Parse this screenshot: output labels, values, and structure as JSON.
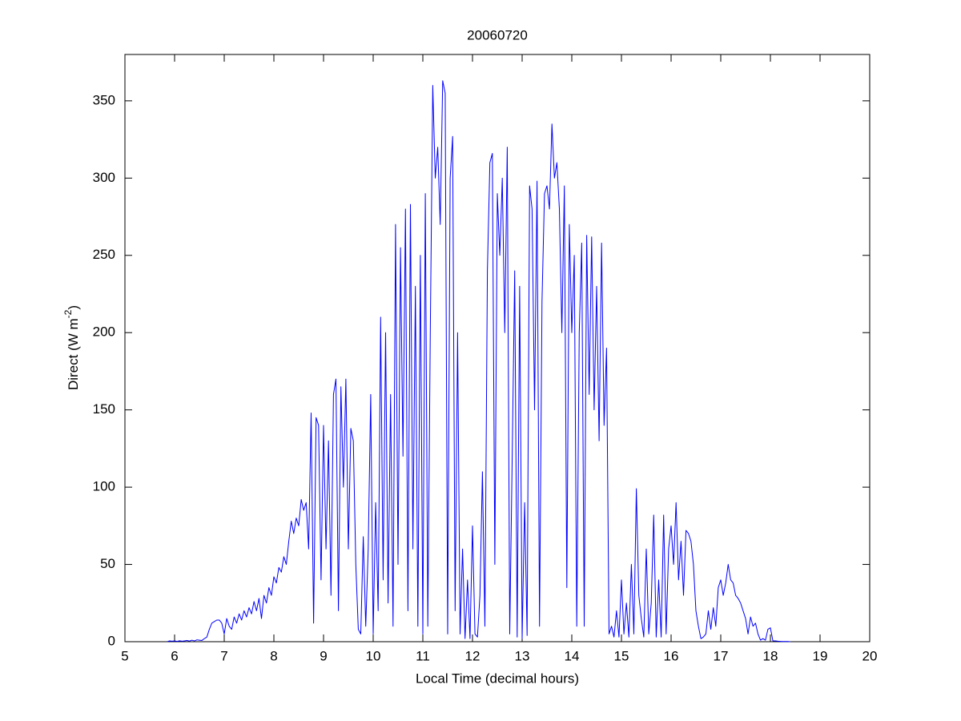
{
  "chart_data": {
    "type": "line",
    "title": "20060720",
    "xlabel": "Local Time (decimal hours)",
    "ylabel_parts": [
      "Direct (W m",
      "-2",
      ")"
    ],
    "color": "#0000ff",
    "x": [
      5.85,
      5.9,
      5.95,
      6.0,
      6.05,
      6.1,
      6.15,
      6.2,
      6.25,
      6.3,
      6.35,
      6.4,
      6.45,
      6.5,
      6.55,
      6.6,
      6.65,
      6.7,
      6.75,
      6.8,
      6.85,
      6.9,
      6.95,
      7.0,
      7.05,
      7.1,
      7.15,
      7.2,
      7.25,
      7.3,
      7.35,
      7.4,
      7.45,
      7.5,
      7.55,
      7.6,
      7.65,
      7.7,
      7.75,
      7.8,
      7.85,
      7.9,
      7.95,
      8.0,
      8.05,
      8.1,
      8.15,
      8.2,
      8.25,
      8.3,
      8.35,
      8.4,
      8.45,
      8.5,
      8.55,
      8.6,
      8.65,
      8.7,
      8.75,
      8.8,
      8.85,
      8.9,
      8.95,
      9.0,
      9.05,
      9.1,
      9.15,
      9.2,
      9.25,
      9.3,
      9.35,
      9.4,
      9.45,
      9.5,
      9.55,
      9.6,
      9.65,
      9.7,
      9.75,
      9.8,
      9.85,
      9.9,
      9.95,
      10.0,
      10.05,
      10.1,
      10.15,
      10.2,
      10.25,
      10.3,
      10.35,
      10.4,
      10.45,
      10.5,
      10.55,
      10.6,
      10.65,
      10.7,
      10.75,
      10.8,
      10.85,
      10.9,
      10.95,
      11.0,
      11.05,
      11.1,
      11.15,
      11.2,
      11.25,
      11.3,
      11.35,
      11.4,
      11.45,
      11.5,
      11.55,
      11.6,
      11.65,
      11.7,
      11.75,
      11.8,
      11.85,
      11.9,
      11.95,
      12.0,
      12.05,
      12.1,
      12.15,
      12.2,
      12.25,
      12.3,
      12.35,
      12.4,
      12.45,
      12.5,
      12.55,
      12.6,
      12.65,
      12.7,
      12.75,
      12.8,
      12.85,
      12.9,
      12.95,
      13.0,
      13.05,
      13.1,
      13.15,
      13.2,
      13.25,
      13.3,
      13.35,
      13.4,
      13.45,
      13.5,
      13.55,
      13.6,
      13.65,
      13.7,
      13.75,
      13.8,
      13.85,
      13.9,
      13.95,
      14.0,
      14.05,
      14.1,
      14.15,
      14.2,
      14.25,
      14.3,
      14.35,
      14.4,
      14.45,
      14.5,
      14.55,
      14.6,
      14.65,
      14.7,
      14.75,
      14.8,
      14.85,
      14.9,
      14.95,
      15.0,
      15.05,
      15.1,
      15.15,
      15.2,
      15.25,
      15.3,
      15.35,
      15.4,
      15.45,
      15.5,
      15.55,
      15.6,
      15.65,
      15.7,
      15.75,
      15.8,
      15.85,
      15.9,
      15.95,
      16.0,
      16.05,
      16.1,
      16.15,
      16.2,
      16.25,
      16.3,
      16.35,
      16.4,
      16.45,
      16.5,
      16.55,
      16.6,
      16.65,
      16.7,
      16.75,
      16.8,
      16.85,
      16.9,
      16.95,
      17.0,
      17.05,
      17.1,
      17.15,
      17.2,
      17.25,
      17.3,
      17.35,
      17.4,
      17.45,
      17.5,
      17.55,
      17.6,
      17.65,
      17.7,
      17.75,
      17.8,
      17.85,
      17.9,
      17.95,
      18.0,
      18.05,
      18.1,
      18.15,
      18.2,
      18.25,
      18.3,
      18.35,
      18.4
    ],
    "values": [
      0,
      0.5,
      0.3,
      0.5,
      0.2,
      0.6,
      0.3,
      0.5,
      0.8,
      0.4,
      1,
      0.5,
      1.2,
      1,
      0.8,
      2,
      3,
      8,
      12,
      13,
      14,
      14,
      12,
      5,
      15,
      10,
      8,
      16,
      12,
      18,
      14,
      20,
      16,
      22,
      18,
      26,
      20,
      28,
      15,
      30,
      25,
      35,
      30,
      42,
      38,
      48,
      45,
      55,
      50,
      65,
      78,
      70,
      80,
      75,
      92,
      85,
      90,
      60,
      148,
      12,
      145,
      140,
      40,
      140,
      60,
      130,
      30,
      160,
      170,
      20,
      165,
      100,
      170,
      60,
      138,
      130,
      50,
      8,
      5,
      68,
      10,
      60,
      160,
      5,
      90,
      20,
      210,
      40,
      200,
      25,
      160,
      10,
      270,
      50,
      255,
      120,
      280,
      20,
      283,
      60,
      230,
      10,
      250,
      5,
      290,
      10,
      200,
      360,
      300,
      320,
      270,
      363,
      355,
      5,
      300,
      327,
      20,
      200,
      5,
      60,
      2,
      40,
      2,
      75,
      5,
      3,
      30,
      110,
      10,
      240,
      310,
      316,
      50,
      290,
      250,
      300,
      200,
      320,
      5,
      120,
      240,
      3,
      230,
      2,
      90,
      4,
      295,
      280,
      150,
      298,
      10,
      220,
      290,
      295,
      280,
      335,
      300,
      310,
      280,
      200,
      295,
      35,
      270,
      200,
      250,
      10,
      200,
      258,
      10,
      263,
      160,
      262,
      150,
      230,
      130,
      258,
      140,
      190,
      5,
      10,
      3,
      20,
      3,
      40,
      5,
      25,
      3,
      50,
      5,
      99,
      30,
      15,
      3,
      60,
      5,
      25,
      82,
      3,
      40,
      3,
      82,
      5,
      60,
      75,
      50,
      90,
      40,
      65,
      30,
      72,
      70,
      65,
      50,
      20,
      10,
      2,
      3,
      5,
      20,
      8,
      22,
      10,
      35,
      40,
      30,
      38,
      50,
      40,
      38,
      30,
      28,
      25,
      20,
      15,
      5,
      16,
      10,
      12,
      5,
      1,
      2,
      1,
      8,
      9,
      0.5,
      0.5,
      0.3,
      0.2,
      0.1,
      0.1,
      0.1,
      0
    ],
    "xlim": [
      5,
      20
    ],
    "xticks": [
      5,
      6,
      7,
      8,
      9,
      10,
      11,
      12,
      13,
      14,
      15,
      16,
      17,
      18,
      19,
      20
    ],
    "ylim": [
      0,
      380
    ],
    "yticks": [
      0,
      50,
      100,
      150,
      200,
      250,
      300,
      350
    ],
    "grid": false
  }
}
